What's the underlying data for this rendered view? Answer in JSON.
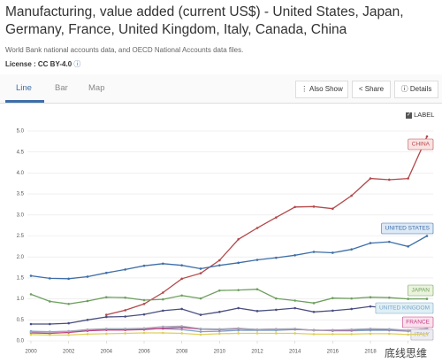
{
  "header": {
    "title": "Manufacturing, value added (current US$) - United States, Japan, Germany, France, United Kingdom, Italy, Canada, China",
    "source": "World Bank national accounts data, and OECD National Accounts data files.",
    "license": "License : CC BY-4.0"
  },
  "tabs": [
    "Line",
    "Bar",
    "Map"
  ],
  "buttons": [
    "Also Show",
    "Share",
    "Details"
  ],
  "label_toggle": "LABEL",
  "watermark": "底线思维",
  "chart_data": {
    "type": "line",
    "x": [
      2000,
      2001,
      2002,
      2003,
      2004,
      2005,
      2006,
      2007,
      2008,
      2009,
      2010,
      2011,
      2012,
      2013,
      2014,
      2015,
      2016,
      2017,
      2018,
      2019,
      2020,
      2021
    ],
    "xlim": [
      2000,
      2021
    ],
    "xticks": [
      2000,
      2002,
      2004,
      2006,
      2008,
      2010,
      2012,
      2014,
      2016,
      2018,
      2020
    ],
    "ylim": [
      0,
      5
    ],
    "yticks": [
      {
        "value": 0,
        "label": "0.0"
      },
      {
        "value": 0.5,
        "label": "0.5"
      },
      {
        "value": 1,
        "label": "1.0"
      },
      {
        "value": 1.5,
        "label": "1.5"
      },
      {
        "value": 2,
        "label": "2.0"
      },
      {
        "value": 2.5,
        "label": "2.5"
      },
      {
        "value": 3,
        "label": "3.0"
      },
      {
        "value": 3.5,
        "label": "3.5"
      },
      {
        "value": 4,
        "label": "4.0"
      },
      {
        "value": 4.5,
        "label": "4.5"
      },
      {
        "value": 5,
        "label": "5.0"
      }
    ],
    "grid": true,
    "series": [
      {
        "name": "CHINA",
        "color": "#b3494a",
        "values": [
          null,
          null,
          null,
          null,
          0.62,
          0.73,
          0.88,
          1.15,
          1.48,
          1.61,
          1.92,
          2.42,
          2.69,
          2.94,
          3.19,
          3.2,
          3.15,
          3.46,
          3.87,
          3.84,
          3.87,
          4.87
        ]
      },
      {
        "name": "UNITED STATES",
        "color": "#3d6ea8",
        "values": [
          1.55,
          1.49,
          1.48,
          1.53,
          1.62,
          1.7,
          1.79,
          1.84,
          1.8,
          1.72,
          1.8,
          1.86,
          1.93,
          1.98,
          2.04,
          2.12,
          2.1,
          2.18,
          2.33,
          2.36,
          2.25,
          2.5
        ]
      },
      {
        "name": "JAPAN",
        "color": "#6ea05e",
        "values": [
          1.11,
          0.94,
          0.88,
          0.95,
          1.04,
          1.03,
          0.97,
          0.99,
          1.08,
          1.01,
          1.2,
          1.21,
          1.23,
          1.01,
          0.96,
          0.9,
          1.02,
          1.01,
          1.04,
          1.03,
          1.0,
          1.0
        ]
      },
      {
        "color": "#4a4e80",
        "values": [
          0.4,
          0.4,
          0.42,
          0.5,
          0.57,
          0.58,
          0.63,
          0.72,
          0.76,
          0.62,
          0.69,
          0.78,
          0.71,
          0.74,
          0.78,
          0.69,
          0.72,
          0.76,
          0.82,
          0.78,
          0.74,
          0.84
        ]
      },
      {
        "name": "UNITED KINGDOM",
        "color": "#7fa4c8",
        "values": [
          0.23,
          0.22,
          0.23,
          0.25,
          0.27,
          0.27,
          0.29,
          0.29,
          0.27,
          0.22,
          0.23,
          0.25,
          0.25,
          0.25,
          0.27,
          0.26,
          0.24,
          0.24,
          0.25,
          0.25,
          0.23,
          0.25
        ]
      },
      {
        "name": "FRANCE",
        "color": "#c13f82",
        "values": [
          0.19,
          0.18,
          0.2,
          0.24,
          0.26,
          0.26,
          0.27,
          0.3,
          0.32,
          0.28,
          0.27,
          0.29,
          0.27,
          0.28,
          0.28,
          0.25,
          0.25,
          0.26,
          0.28,
          0.27,
          0.25,
          0.29
        ]
      },
      {
        "name": "ITALY",
        "color": "#a7a7b8",
        "values": [
          0.21,
          0.21,
          0.23,
          0.27,
          0.29,
          0.29,
          0.3,
          0.34,
          0.35,
          0.29,
          0.28,
          0.3,
          0.27,
          0.28,
          0.29,
          0.25,
          0.26,
          0.27,
          0.29,
          0.28,
          0.25,
          0.29
        ]
      },
      {
        "color": "#e0cf5a",
        "values": [
          0.15,
          0.14,
          0.14,
          0.16,
          0.17,
          0.18,
          0.19,
          0.19,
          0.18,
          0.15,
          0.17,
          0.18,
          0.18,
          0.18,
          0.18,
          0.16,
          0.16,
          0.16,
          0.17,
          0.17,
          0.15,
          0.17
        ]
      }
    ]
  }
}
